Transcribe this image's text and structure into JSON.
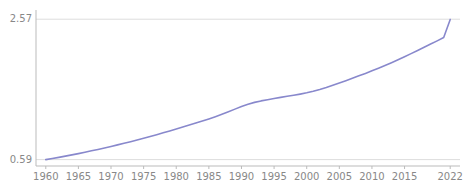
{
  "chart_data": {
    "type": "line",
    "x": [
      1960,
      1961,
      1962,
      1963,
      1964,
      1965,
      1966,
      1967,
      1968,
      1969,
      1970,
      1971,
      1972,
      1973,
      1974,
      1975,
      1976,
      1977,
      1978,
      1979,
      1980,
      1981,
      1982,
      1983,
      1984,
      1985,
      1986,
      1987,
      1988,
      1989,
      1990,
      1991,
      1992,
      1993,
      1994,
      1995,
      1996,
      1997,
      1998,
      1999,
      2000,
      2001,
      2002,
      2003,
      2004,
      2005,
      2006,
      2007,
      2008,
      2009,
      2010,
      2011,
      2012,
      2013,
      2014,
      2015,
      2016,
      2017,
      2018,
      2019,
      2020,
      2021,
      2022
    ],
    "values": [
      0.59,
      0.606,
      0.622,
      0.639,
      0.657,
      0.675,
      0.694,
      0.714,
      0.734,
      0.755,
      0.776,
      0.798,
      0.82,
      0.843,
      0.867,
      0.891,
      0.916,
      0.942,
      0.968,
      0.994,
      1.021,
      1.049,
      1.077,
      1.105,
      1.134,
      1.164,
      1.196,
      1.23,
      1.265,
      1.302,
      1.34,
      1.371,
      1.397,
      1.418,
      1.435,
      1.452,
      1.468,
      1.483,
      1.498,
      1.514,
      1.532,
      1.554,
      1.579,
      1.607,
      1.638,
      1.67,
      1.703,
      1.737,
      1.771,
      1.806,
      1.842,
      1.879,
      1.917,
      1.957,
      1.998,
      2.041,
      2.085,
      2.13,
      2.175,
      2.22,
      2.265,
      2.312,
      2.567
    ],
    "color": "#8888cc",
    "xlim": [
      1958.5,
      2023.5
    ],
    "ylim": [
      0.5,
      2.7
    ],
    "xticks": [
      1960,
      1965,
      1970,
      1975,
      1980,
      1985,
      1990,
      1995,
      2000,
      2005,
      2010,
      2015,
      2022
    ],
    "yticks": [
      0.59,
      2.57
    ],
    "grid": true
  }
}
